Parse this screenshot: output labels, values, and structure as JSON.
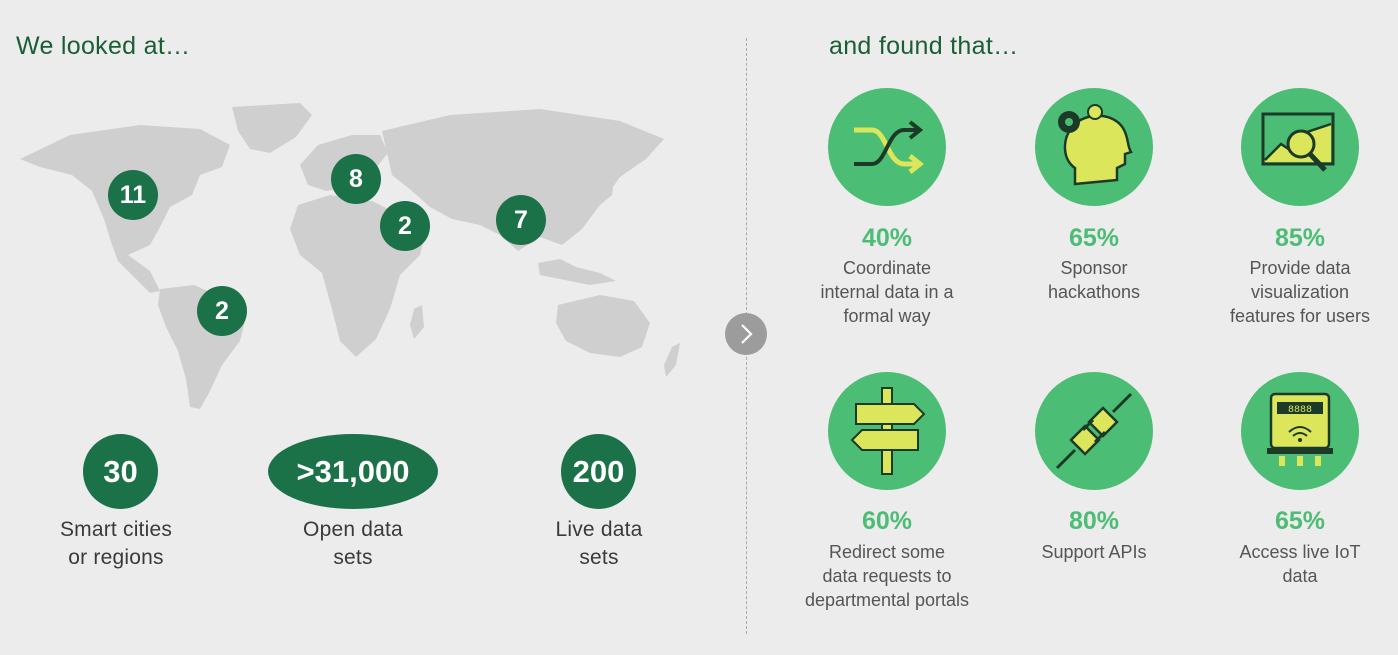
{
  "left": {
    "heading": "We looked at…",
    "map_pins": [
      {
        "id": "north-america",
        "value": "11"
      },
      {
        "id": "europe",
        "value": "8"
      },
      {
        "id": "middle-east",
        "value": "2"
      },
      {
        "id": "asia",
        "value": "7"
      },
      {
        "id": "south-america",
        "value": "2"
      }
    ],
    "stats": [
      {
        "value": "30",
        "label_line1": "Smart cities",
        "label_line2": "or regions"
      },
      {
        "value": ">31,000",
        "label_line1": "Open data",
        "label_line2": "sets"
      },
      {
        "value": "200",
        "label_line1": "Live data",
        "label_line2": "sets"
      }
    ]
  },
  "right": {
    "heading": "and found that…",
    "findings": [
      {
        "icon": "shuffle-arrows-icon",
        "percent": "40%",
        "lines": [
          "Coordinate",
          "internal data in a",
          "formal way"
        ]
      },
      {
        "icon": "head-gears-icon",
        "percent": "65%",
        "lines": [
          "Sponsor",
          "hackathons"
        ]
      },
      {
        "icon": "chart-magnifier-icon",
        "percent": "85%",
        "lines": [
          "Provide data",
          "visualization",
          "features for users"
        ]
      },
      {
        "icon": "signpost-icon",
        "percent": "60%",
        "lines": [
          "Redirect some",
          "data requests to",
          "departmental portals"
        ]
      },
      {
        "icon": "plug-connector-icon",
        "percent": "80%",
        "lines": [
          "Support APIs"
        ]
      },
      {
        "icon": "smart-meter-icon",
        "percent": "65%",
        "lines": [
          "Access live IoT",
          "data"
        ]
      }
    ]
  },
  "colors": {
    "dark_green": "#1b7148",
    "light_green": "#4cbd74",
    "yellow": "#dbe65a",
    "map_gray": "#cfcfcf"
  }
}
